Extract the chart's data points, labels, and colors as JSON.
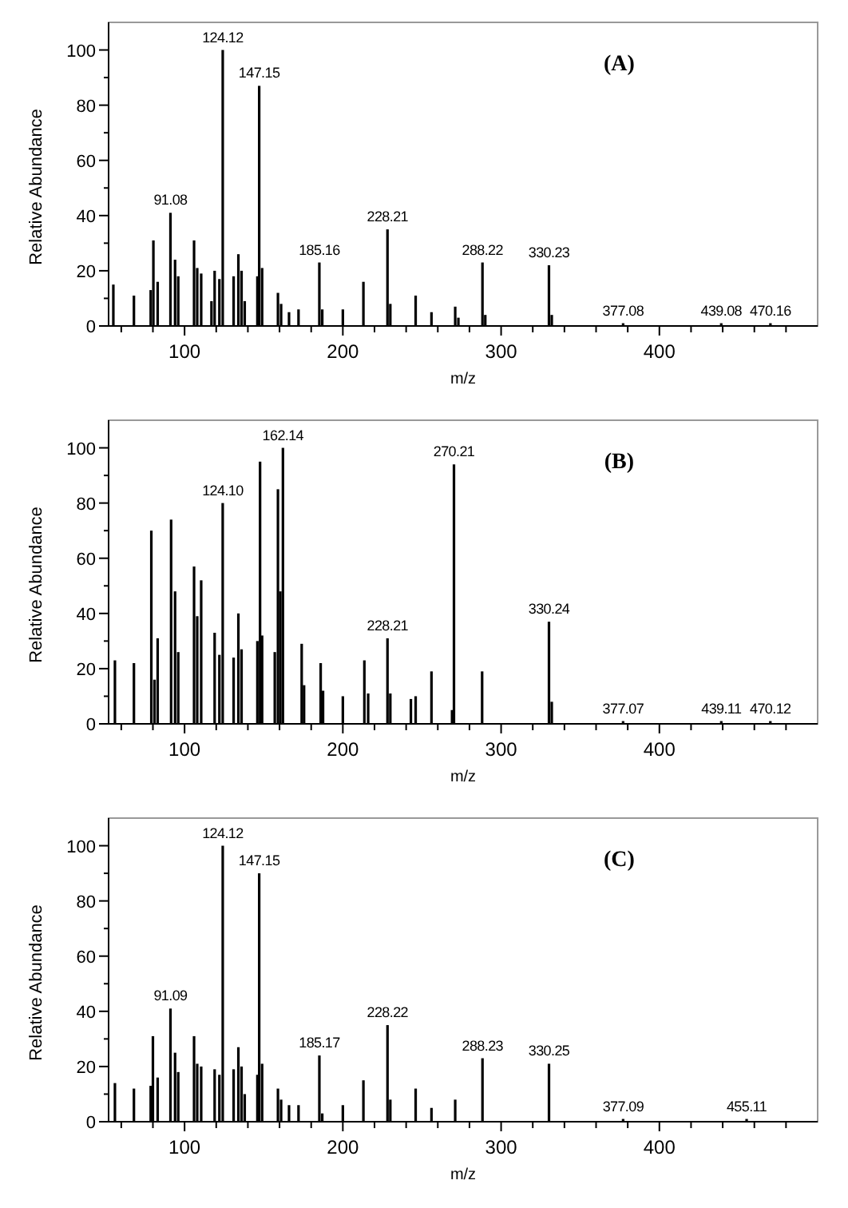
{
  "chart_data": [
    {
      "type": "bar",
      "title": "(A)",
      "xlabel": "m/z",
      "ylabel": "Relative Abundance",
      "xlim": [
        52,
        500
      ],
      "ylim": [
        0,
        110
      ],
      "xticks": [
        {
          "value": 60,
          "label": null
        },
        {
          "value": 80,
          "label": null
        },
        100,
        {
          "value": 120,
          "label": null
        },
        {
          "value": 140,
          "label": null
        },
        {
          "value": 160,
          "label": null
        },
        {
          "value": 180,
          "label": null
        },
        200,
        {
          "value": 220,
          "label": null
        },
        {
          "value": 240,
          "label": null
        },
        {
          "value": 260,
          "label": null
        },
        {
          "value": 280,
          "label": null
        },
        300,
        {
          "value": 320,
          "label": null
        },
        {
          "value": 340,
          "label": null
        },
        {
          "value": 360,
          "label": null
        },
        {
          "value": 380,
          "label": null
        },
        400,
        {
          "value": 420,
          "label": null
        },
        {
          "value": 440,
          "label": null
        },
        {
          "value": 460,
          "label": null
        },
        {
          "value": 480,
          "label": null
        }
      ],
      "yticks": [
        0,
        {
          "value": 10,
          "label": null
        },
        20,
        {
          "value": 30,
          "label": null
        },
        40,
        {
          "value": 50,
          "label": null
        },
        60,
        {
          "value": 70,
          "label": null
        },
        80,
        {
          "value": 90,
          "label": null
        },
        100
      ],
      "color": "#000000",
      "x": [
        55,
        68,
        78.6,
        80.3,
        83,
        91.08,
        94,
        96,
        106,
        108,
        110.5,
        117,
        119,
        122,
        124.12,
        131,
        134,
        136,
        138,
        146,
        147.15,
        149,
        159,
        161,
        166,
        172,
        185.16,
        187,
        200,
        213,
        228.21,
        230,
        246,
        256,
        271,
        273,
        288.22,
        290,
        330.23,
        332,
        377.08,
        439.08,
        470.16
      ],
      "values": [
        15,
        11,
        13,
        31,
        16,
        41,
        24,
        18,
        31,
        21,
        19,
        9,
        20,
        17,
        100,
        18,
        26,
        20,
        9,
        18,
        87,
        21,
        12,
        8,
        5,
        6,
        23,
        6,
        6,
        16,
        35,
        8,
        11,
        5,
        7,
        3,
        23,
        4,
        22,
        4,
        1,
        1,
        1
      ],
      "annotations": [
        {
          "text": "91.08",
          "x": 91.08,
          "y": 41
        },
        {
          "text": "124.12",
          "x": 124.12,
          "y": 100
        },
        {
          "text": "147.15",
          "x": 147.15,
          "y": 87
        },
        {
          "text": "185.16",
          "x": 185.16,
          "y": 23
        },
        {
          "text": "228.21",
          "x": 228.21,
          "y": 35
        },
        {
          "text": "288.22",
          "x": 288.22,
          "y": 23
        },
        {
          "text": "330.23",
          "x": 330.23,
          "y": 22
        },
        {
          "text": "377.08",
          "x": 377.08,
          "y": 1
        },
        {
          "text": "439.08",
          "x": 439.08,
          "y": 1
        },
        {
          "text": "470.16",
          "x": 470.16,
          "y": 1
        }
      ]
    },
    {
      "type": "bar",
      "title": "(B)",
      "xlabel": "m/z",
      "ylabel": "Relative Abundance",
      "xlim": [
        52,
        500
      ],
      "ylim": [
        0,
        110
      ],
      "xticks": [
        {
          "value": 60,
          "label": null
        },
        {
          "value": 80,
          "label": null
        },
        100,
        {
          "value": 120,
          "label": null
        },
        {
          "value": 140,
          "label": null
        },
        {
          "value": 160,
          "label": null
        },
        {
          "value": 180,
          "label": null
        },
        200,
        {
          "value": 220,
          "label": null
        },
        {
          "value": 240,
          "label": null
        },
        {
          "value": 260,
          "label": null
        },
        {
          "value": 280,
          "label": null
        },
        300,
        {
          "value": 320,
          "label": null
        },
        {
          "value": 340,
          "label": null
        },
        {
          "value": 360,
          "label": null
        },
        {
          "value": 380,
          "label": null
        },
        400,
        {
          "value": 420,
          "label": null
        },
        {
          "value": 440,
          "label": null
        },
        {
          "value": 460,
          "label": null
        },
        {
          "value": 480,
          "label": null
        }
      ],
      "yticks": [
        0,
        {
          "value": 10,
          "label": null
        },
        20,
        {
          "value": 30,
          "label": null
        },
        40,
        {
          "value": 50,
          "label": null
        },
        60,
        {
          "value": 70,
          "label": null
        },
        80,
        {
          "value": 90,
          "label": null
        },
        100
      ],
      "color": "#000000",
      "x": [
        56,
        68,
        79,
        81,
        83,
        91.5,
        94,
        96,
        106,
        108,
        110.5,
        119,
        122,
        124.1,
        131,
        134,
        136,
        146,
        147.7,
        149,
        157,
        159,
        160.5,
        162.14,
        174,
        175.5,
        186,
        187.5,
        200,
        213.6,
        216,
        228.21,
        230,
        243,
        246,
        256,
        269,
        270.21,
        288,
        330.24,
        332,
        377.07,
        439.11,
        470.12
      ],
      "values": [
        23,
        22,
        70,
        16,
        31,
        74,
        48,
        26,
        57,
        39,
        52,
        33,
        25,
        80,
        24,
        40,
        27,
        30,
        95,
        32,
        26,
        85,
        48,
        100,
        29,
        14,
        22,
        12,
        10,
        23,
        11,
        31,
        11,
        9,
        10,
        19,
        5,
        94,
        19,
        37,
        8,
        1,
        1,
        1
      ],
      "annotations": [
        {
          "text": "124.10",
          "x": 124.1,
          "y": 80
        },
        {
          "text": "162.14",
          "x": 162.14,
          "y": 100
        },
        {
          "text": "228.21",
          "x": 228.21,
          "y": 31
        },
        {
          "text": "270.21",
          "x": 270.21,
          "y": 94
        },
        {
          "text": "330.24",
          "x": 330.24,
          "y": 37
        },
        {
          "text": "377.07",
          "x": 377.07,
          "y": 1
        },
        {
          "text": "439.11",
          "x": 439.11,
          "y": 1
        },
        {
          "text": "470.12",
          "x": 470.12,
          "y": 1
        }
      ]
    },
    {
      "type": "bar",
      "title": "(C)",
      "xlabel": "m/z",
      "ylabel": "Relative Abundance",
      "xlim": [
        52,
        500
      ],
      "ylim": [
        0,
        110
      ],
      "xticks": [
        {
          "value": 60,
          "label": null
        },
        {
          "value": 80,
          "label": null
        },
        100,
        {
          "value": 120,
          "label": null
        },
        {
          "value": 140,
          "label": null
        },
        {
          "value": 160,
          "label": null
        },
        {
          "value": 180,
          "label": null
        },
        200,
        {
          "value": 220,
          "label": null
        },
        {
          "value": 240,
          "label": null
        },
        {
          "value": 260,
          "label": null
        },
        {
          "value": 280,
          "label": null
        },
        300,
        {
          "value": 320,
          "label": null
        },
        {
          "value": 340,
          "label": null
        },
        {
          "value": 360,
          "label": null
        },
        {
          "value": 380,
          "label": null
        },
        400,
        {
          "value": 420,
          "label": null
        },
        {
          "value": 440,
          "label": null
        },
        {
          "value": 460,
          "label": null
        },
        {
          "value": 480,
          "label": null
        }
      ],
      "yticks": [
        0,
        {
          "value": 10,
          "label": null
        },
        20,
        {
          "value": 30,
          "label": null
        },
        40,
        {
          "value": 50,
          "label": null
        },
        60,
        {
          "value": 70,
          "label": null
        },
        80,
        {
          "value": 90,
          "label": null
        },
        100
      ],
      "color": "#000000",
      "x": [
        56,
        68,
        78.6,
        80,
        83,
        91.09,
        94,
        96,
        106,
        108,
        110.5,
        119,
        122,
        124.12,
        131,
        134,
        136,
        138,
        146,
        147.15,
        149,
        159,
        161,
        166,
        172,
        185.17,
        187,
        200,
        213,
        228.22,
        230,
        246,
        256,
        271,
        288.23,
        330.25,
        377.09,
        455.11
      ],
      "values": [
        14,
        12,
        13,
        31,
        16,
        41,
        25,
        18,
        31,
        21,
        20,
        19,
        17,
        100,
        19,
        27,
        20,
        10,
        17,
        90,
        21,
        12,
        8,
        6,
        6,
        24,
        3,
        6,
        15,
        35,
        8,
        12,
        5,
        8,
        23,
        21,
        1,
        1
      ],
      "annotations": [
        {
          "text": "91.09",
          "x": 91.09,
          "y": 41
        },
        {
          "text": "124.12",
          "x": 124.12,
          "y": 100
        },
        {
          "text": "147.15",
          "x": 147.15,
          "y": 90
        },
        {
          "text": "185.17",
          "x": 185.17,
          "y": 24
        },
        {
          "text": "228.22",
          "x": 228.22,
          "y": 35
        },
        {
          "text": "288.23",
          "x": 288.23,
          "y": 23
        },
        {
          "text": "330.25",
          "x": 330.25,
          "y": 21
        },
        {
          "text": "377.09",
          "x": 377.09,
          "y": 1
        },
        {
          "text": "455.11",
          "x": 455.11,
          "y": 1
        }
      ]
    }
  ]
}
